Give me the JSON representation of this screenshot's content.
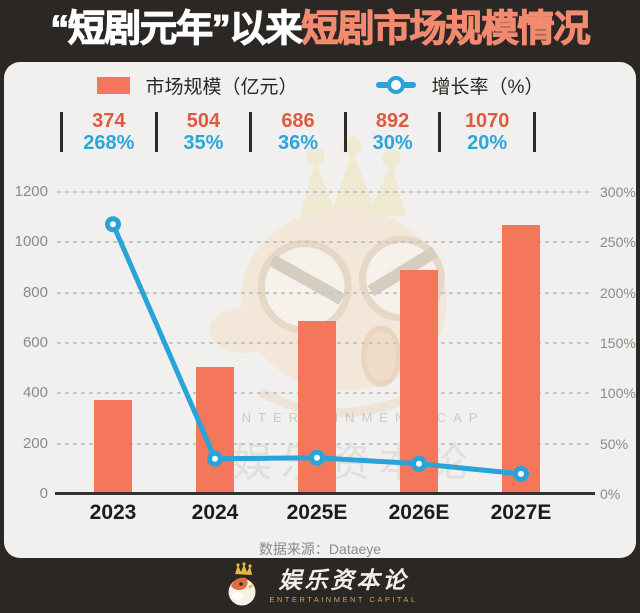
{
  "title": {
    "part1": "“短剧元年”以来",
    "part2": "短剧市场规模情况"
  },
  "legend": {
    "bar_label": "市场规模（亿元）",
    "line_label": "增长率（%）"
  },
  "chart_data": {
    "type": "bar+line",
    "categories": [
      "2023",
      "2024",
      "2025E",
      "2026E",
      "2027E"
    ],
    "series": [
      {
        "name": "市场规模（亿元）",
        "type": "bar",
        "axis": "left",
        "values": [
          374,
          504,
          686,
          892,
          1070
        ]
      },
      {
        "name": "增长率（%）",
        "type": "line",
        "axis": "right",
        "values": [
          268,
          35,
          36,
          30,
          20
        ],
        "unit": "%"
      }
    ],
    "data_labels": {
      "market_size": [
        "374",
        "504",
        "686",
        "892",
        "1070"
      ],
      "growth_rate": [
        "268%",
        "35%",
        "36%",
        "30%",
        "20%"
      ]
    },
    "left_axis": {
      "min": 0,
      "max": 1200,
      "step": 200,
      "ticks": [
        "0",
        "200",
        "400",
        "600",
        "800",
        "1000",
        "1200"
      ]
    },
    "right_axis": {
      "min": 0,
      "max": 300,
      "step": 50,
      "ticks": [
        "0%",
        "50%",
        "100%",
        "150%",
        "200%",
        "250%",
        "300%"
      ]
    },
    "grid": "dashed-horizontal",
    "legend_position": "top",
    "title": "“短剧元年”以来短剧市场规模情况"
  },
  "source": "数据来源：Dataeye",
  "footer": {
    "brand": "娱乐资本论",
    "subtitle": "ENTERTAINMENT CAPITAL"
  },
  "watermarks": {
    "latin": "ENTERTAINMENT CAP",
    "chinese": "娱乐资本论"
  },
  "colors": {
    "page_bg": "#2B2724",
    "card_bg": "#F1F0EE",
    "bar": "#F4775B",
    "line": "#29A4D9",
    "title_accent": "#F28A70",
    "value_text": "#E05A41",
    "growth_text": "#2BA6DB",
    "axis_text": "#8C8A87"
  }
}
